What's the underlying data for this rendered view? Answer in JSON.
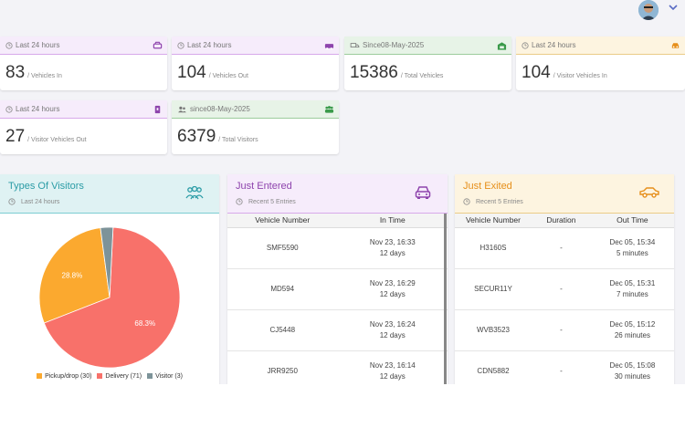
{
  "colors": {
    "pickup": "#fba92f",
    "delivery": "#f8716a",
    "visitor": "#7d9399",
    "teal": "#2b9ca6",
    "purple": "#8e44ad",
    "orange": "#e68f1a"
  },
  "stats": [
    {
      "caption": "Last 24 hours",
      "value": "83",
      "label": "/ Vehicles In",
      "icon": "car-icon"
    },
    {
      "caption": "Last 24 hours",
      "value": "104",
      "label": "/ Vehicles Out",
      "icon": "car-icon"
    },
    {
      "caption": "Since08-May-2025",
      "value": "15386",
      "label": "/ Total Vehicles",
      "icon": "garage-icon"
    },
    {
      "caption": "Last 24 hours",
      "value": "104",
      "label": "/ Visitor Vehicles In",
      "icon": "car-front-icon"
    },
    {
      "caption": "Last 24 hours",
      "value": "27",
      "label": "/ Visitor Vehicles Out",
      "icon": "exit-icon"
    },
    {
      "caption": "since08-May-2025",
      "value": "6379",
      "label": "/ Total Visitors",
      "icon": "group-icon"
    }
  ],
  "visitors": {
    "title": "Types Of Visitors",
    "subtitle": "Last 24 hours"
  },
  "chart_data": {
    "type": "pie",
    "title": "Types Of Visitors",
    "categories": [
      "Pickup/drop",
      "Delivery",
      "Visitor"
    ],
    "values": [
      30,
      71,
      3
    ],
    "slice_labels": [
      "28.8%",
      "68.3%",
      ""
    ],
    "legend": [
      "Pickup/drop (30)",
      "Delivery (71)",
      "Visitor (3)"
    ],
    "legend_position": "bottom"
  },
  "entered": {
    "title": "Just Entered",
    "subtitle": "Recent 5 Entries",
    "columns": [
      "Vehicle Number",
      "In Time"
    ],
    "rows": [
      {
        "vehicle": "SMF5590",
        "time": "Nov 23, 16:33",
        "ago": "12 days"
      },
      {
        "vehicle": "MD594",
        "time": "Nov 23, 16:29",
        "ago": "12 days"
      },
      {
        "vehicle": "CJ5448",
        "time": "Nov 23, 16:24",
        "ago": "12 days"
      },
      {
        "vehicle": "JRR9250",
        "time": "Nov 23, 16:14",
        "ago": "12 days"
      }
    ]
  },
  "exited": {
    "title": "Just Exited",
    "subtitle": "Recent 5 Entries",
    "columns": [
      "Vehicle Number",
      "Duration",
      "Out Time"
    ],
    "rows": [
      {
        "vehicle": "H3160S",
        "duration": "-",
        "time": "Dec 05, 15:34",
        "ago": "5 minutes"
      },
      {
        "vehicle": "SECUR11Y",
        "duration": "-",
        "time": "Dec 05, 15:31",
        "ago": "7 minutes"
      },
      {
        "vehicle": "WVB3523",
        "duration": "-",
        "time": "Dec 05, 15:12",
        "ago": "26 minutes"
      },
      {
        "vehicle": "CDN5882",
        "duration": "-",
        "time": "Dec 05, 15:08",
        "ago": "30 minutes"
      }
    ]
  }
}
